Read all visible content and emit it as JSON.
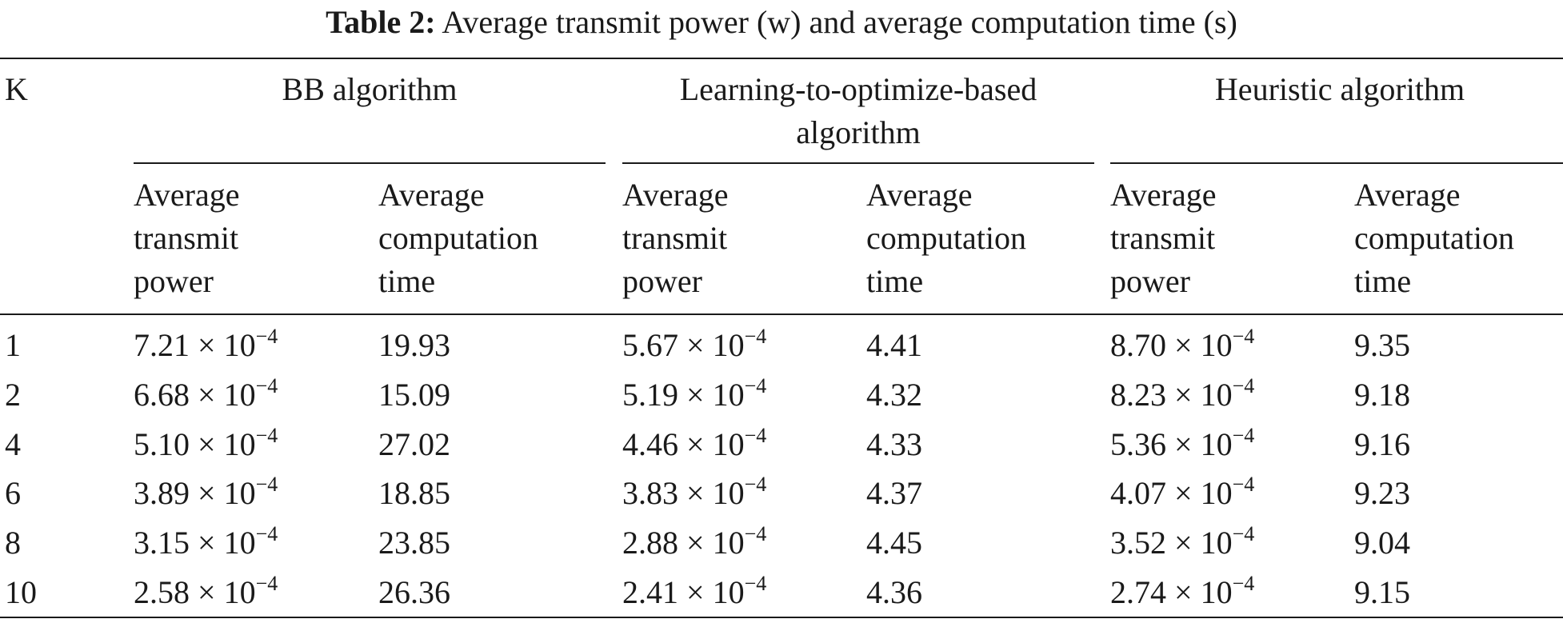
{
  "caption": {
    "label": "Table 2:",
    "text": "Average transmit power (w) and average computation time (s)"
  },
  "header": {
    "k": "K",
    "groups": [
      "BB algorithm",
      "Learning-to-optimize-based algorithm",
      "Heuristic algorithm"
    ],
    "sub": {
      "power": [
        "Average",
        "transmit",
        "power"
      ],
      "time": [
        "Average",
        "computation",
        "time"
      ]
    }
  },
  "times_sign": "×",
  "exp_base": "10",
  "exp": "−4",
  "rows": [
    {
      "k": "1",
      "bb_p": "7.21",
      "bb_t": "19.93",
      "l2o_p": "5.67",
      "l2o_t": "4.41",
      "h_p": "8.70",
      "h_t": "9.35"
    },
    {
      "k": "2",
      "bb_p": "6.68",
      "bb_t": "15.09",
      "l2o_p": "5.19",
      "l2o_t": "4.32",
      "h_p": "8.23",
      "h_t": "9.18"
    },
    {
      "k": "4",
      "bb_p": "5.10",
      "bb_t": "27.02",
      "l2o_p": "4.46",
      "l2o_t": "4.33",
      "h_p": "5.36",
      "h_t": "9.16"
    },
    {
      "k": "6",
      "bb_p": "3.89",
      "bb_t": "18.85",
      "l2o_p": "3.83",
      "l2o_t": "4.37",
      "h_p": "4.07",
      "h_t": "9.23"
    },
    {
      "k": "8",
      "bb_p": "3.15",
      "bb_t": "23.85",
      "l2o_p": "2.88",
      "l2o_t": "4.45",
      "h_p": "3.52",
      "h_t": "9.04"
    },
    {
      "k": "10",
      "bb_p": "2.58",
      "bb_t": "26.36",
      "l2o_p": "2.41",
      "l2o_t": "4.36",
      "h_p": "2.74",
      "h_t": "9.15"
    }
  ]
}
